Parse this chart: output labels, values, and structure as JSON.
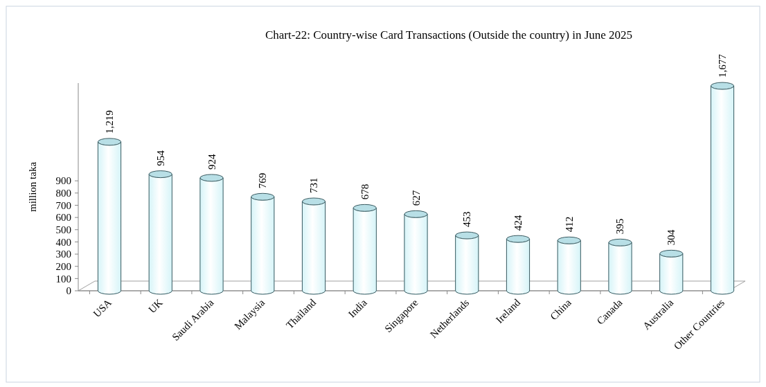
{
  "chart_data": {
    "type": "bar",
    "title": "Chart-22: Country-wise Card Transactions  (Outside the country) in June 2025",
    "ylabel": "million taka",
    "categories": [
      "USA",
      "UK",
      "Saudi Arabia",
      "Malaysia",
      "Thailand",
      "India",
      "Singapore",
      "Netherlands",
      "Ireland",
      "China",
      "Canada",
      "Australia",
      "Other Countries"
    ],
    "values": [
      1219,
      954,
      924,
      769,
      731,
      678,
      627,
      453,
      424,
      412,
      395,
      304,
      1677
    ],
    "value_labels": [
      "1,219",
      "954",
      "924",
      "769",
      "731",
      "678",
      "627",
      "453",
      "424",
      "412",
      "395",
      "304",
      "1,677"
    ],
    "color": "#d6f4f8",
    "ylim": [
      0,
      1700
    ],
    "yticks": [
      0,
      100,
      200,
      300,
      400,
      500,
      600,
      700,
      800,
      900
    ],
    "grid": false
  }
}
